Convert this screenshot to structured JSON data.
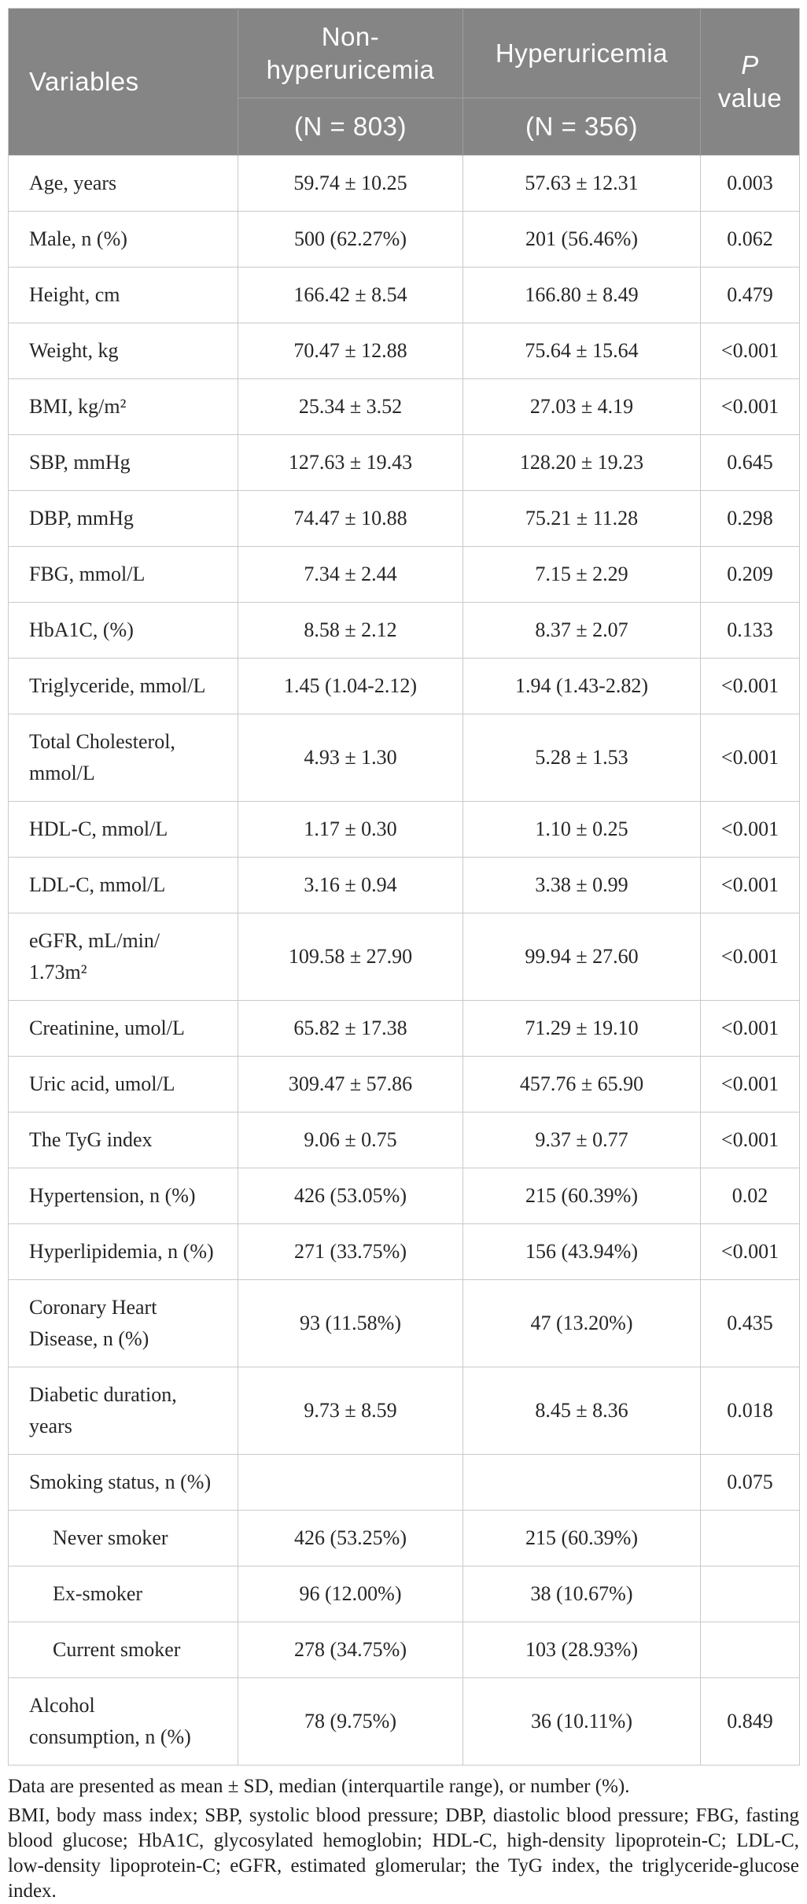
{
  "table": {
    "header": {
      "variables": "Variables",
      "group1_name": "Non-\nhyperuricemia",
      "group1_n": "(N = 803)",
      "group2_name": "Hyperuricemia",
      "group2_n": "(N = 356)",
      "p_line1": "P",
      "p_line2": "value"
    },
    "rows": [
      {
        "label": "Age, years",
        "indent": false,
        "g1": "59.74 ± 10.25",
        "g2": "57.63 ± 12.31",
        "p": "0.003"
      },
      {
        "label": "Male, n (%)",
        "indent": false,
        "g1": "500 (62.27%)",
        "g2": "201 (56.46%)",
        "p": "0.062"
      },
      {
        "label": "Height, cm",
        "indent": false,
        "g1": "166.42 ± 8.54",
        "g2": "166.80 ± 8.49",
        "p": "0.479"
      },
      {
        "label": "Weight, kg",
        "indent": false,
        "g1": "70.47 ± 12.88",
        "g2": "75.64 ± 15.64",
        "p": "<0.001"
      },
      {
        "label": "BMI, kg/m²",
        "indent": false,
        "g1": "25.34 ± 3.52",
        "g2": "27.03 ± 4.19",
        "p": "<0.001"
      },
      {
        "label": "SBP, mmHg",
        "indent": false,
        "g1": "127.63 ± 19.43",
        "g2": "128.20 ± 19.23",
        "p": "0.645"
      },
      {
        "label": "DBP, mmHg",
        "indent": false,
        "g1": "74.47 ± 10.88",
        "g2": "75.21 ± 11.28",
        "p": "0.298"
      },
      {
        "label": "FBG, mmol/L",
        "indent": false,
        "g1": "7.34 ± 2.44",
        "g2": "7.15 ± 2.29",
        "p": "0.209"
      },
      {
        "label": "HbA1C, (%)",
        "indent": false,
        "g1": "8.58 ± 2.12",
        "g2": "8.37 ± 2.07",
        "p": "0.133"
      },
      {
        "label": "Triglyceride, mmol/L",
        "indent": false,
        "g1": "1.45 (1.04-2.12)",
        "g2": "1.94 (1.43-2.82)",
        "p": "<0.001"
      },
      {
        "label": "Total Cholesterol,\nmmol/L",
        "indent": false,
        "g1": "4.93 ± 1.30",
        "g2": "5.28 ± 1.53",
        "p": "<0.001"
      },
      {
        "label": "HDL-C, mmol/L",
        "indent": false,
        "g1": "1.17 ± 0.30",
        "g2": "1.10 ± 0.25",
        "p": "<0.001"
      },
      {
        "label": "LDL-C, mmol/L",
        "indent": false,
        "g1": "3.16 ± 0.94",
        "g2": "3.38 ± 0.99",
        "p": "<0.001"
      },
      {
        "label": "eGFR, mL/min/\n1.73m²",
        "indent": false,
        "g1": "109.58 ± 27.90",
        "g2": "99.94 ± 27.60",
        "p": "<0.001"
      },
      {
        "label": "Creatinine, umol/L",
        "indent": false,
        "g1": "65.82 ± 17.38",
        "g2": "71.29 ± 19.10",
        "p": "<0.001"
      },
      {
        "label": "Uric acid, umol/L",
        "indent": false,
        "g1": "309.47 ± 57.86",
        "g2": "457.76 ± 65.90",
        "p": "<0.001"
      },
      {
        "label": "The TyG index",
        "indent": false,
        "g1": "9.06 ± 0.75",
        "g2": "9.37 ± 0.77",
        "p": "<0.001"
      },
      {
        "label": "Hypertension, n (%)",
        "indent": false,
        "g1": "426 (53.05%)",
        "g2": "215 (60.39%)",
        "p": "0.02"
      },
      {
        "label": "Hyperlipidemia, n (%)",
        "indent": false,
        "g1": "271 (33.75%)",
        "g2": "156 (43.94%)",
        "p": "<0.001"
      },
      {
        "label": "Coronary Heart\nDisease, n (%)",
        "indent": false,
        "g1": "93 (11.58%)",
        "g2": "47 (13.20%)",
        "p": "0.435"
      },
      {
        "label": "Diabetic duration,\nyears",
        "indent": false,
        "g1": "9.73 ± 8.59",
        "g2": "8.45 ± 8.36",
        "p": "0.018"
      },
      {
        "label": "Smoking status, n (%)",
        "indent": false,
        "g1": "",
        "g2": "",
        "p": "0.075"
      },
      {
        "label": "Never smoker",
        "indent": true,
        "g1": "426 (53.25%)",
        "g2": "215 (60.39%)",
        "p": ""
      },
      {
        "label": "Ex-smoker",
        "indent": true,
        "g1": "96 (12.00%)",
        "g2": "38 (10.67%)",
        "p": ""
      },
      {
        "label": "Current smoker",
        "indent": true,
        "g1": "278 (34.75%)",
        "g2": "103 (28.93%)",
        "p": ""
      },
      {
        "label": "Alcohol\nconsumption, n (%)",
        "indent": false,
        "g1": "78 (9.75%)",
        "g2": "36 (10.11%)",
        "p": "0.849"
      }
    ]
  },
  "footnotes": {
    "presentation": "Data are presented as mean ± SD, median (interquartile range), or number (%).",
    "abbreviations": "BMI, body mass index; SBP, systolic blood pressure; DBP, diastolic blood pressure; FBG, fasting blood glucose; HbA1C, glycosylated hemoglobin; HDL-C, high-density lipoprotein-C; LDL-C, low-density lipoprotein-C; eGFR, estimated glomerular; the TyG index, the triglyceride-glucose index."
  },
  "colors": {
    "header_background": "#858585",
    "header_text": "#ffffff",
    "header_divider": "#9f9f9f",
    "body_border": "#c9c9c9",
    "body_text": "#262626"
  }
}
